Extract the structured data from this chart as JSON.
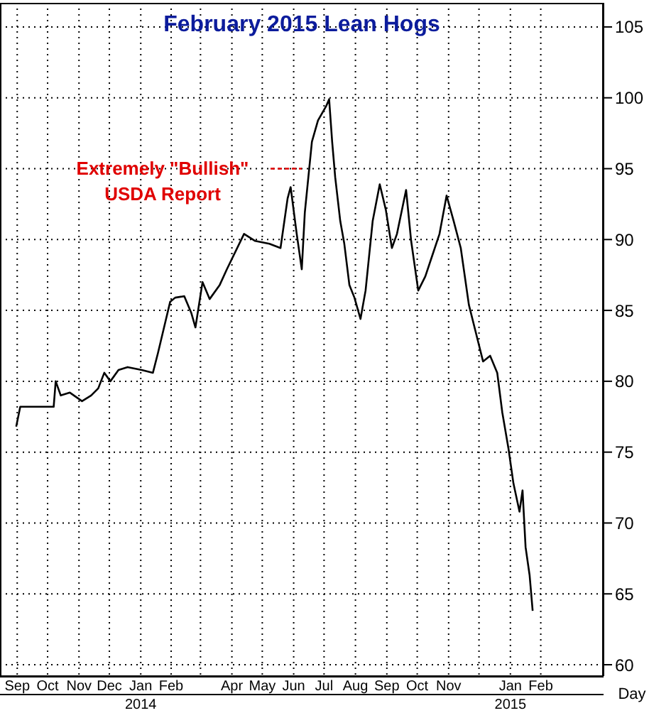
{
  "chart_data": {
    "type": "line",
    "title": "February 2015 Lean Hogs",
    "annotations": [
      {
        "text": "Extremely \"Bullish\"\nUSDA Report",
        "x": "2014-06-24",
        "y": 95
      },
      "Day"
    ],
    "x": [
      "2013-09-15",
      "2013-09-19",
      "2013-10-22",
      "2013-10-24",
      "2013-10-29",
      "2013-11-07",
      "2013-11-19",
      "2013-11-28",
      "2013-12-05",
      "2013-12-11",
      "2013-12-17",
      "2013-12-25",
      "2014-01-03",
      "2014-01-17",
      "2014-01-28",
      "2014-02-02",
      "2014-02-08",
      "2014-02-14",
      "2014-02-19",
      "2014-02-28",
      "2014-03-07",
      "2014-03-11",
      "2014-03-18",
      "2014-03-25",
      "2014-04-04",
      "2014-04-11",
      "2014-04-28",
      "2014-05-09",
      "2014-05-23",
      "2014-06-03",
      "2014-06-10",
      "2014-06-13",
      "2014-06-19",
      "2014-06-24",
      "2014-06-27",
      "2014-07-04",
      "2014-07-10",
      "2014-07-18",
      "2014-07-21",
      "2014-07-24",
      "2014-07-27",
      "2014-08-01",
      "2014-08-05",
      "2014-08-10",
      "2014-08-15",
      "2014-08-21",
      "2014-08-26",
      "2014-09-02",
      "2014-09-09",
      "2014-09-15",
      "2014-09-21",
      "2014-09-26",
      "2014-10-05",
      "2014-10-10",
      "2014-10-17",
      "2014-10-24",
      "2014-10-31",
      "2014-11-07",
      "2014-11-14",
      "2014-11-21",
      "2014-11-28",
      "2014-12-06",
      "2014-12-13",
      "2014-12-20",
      "2014-12-27",
      "2015-01-03",
      "2015-01-08",
      "2015-01-14",
      "2015-01-19",
      "2015-01-25",
      "2015-01-28",
      "2015-01-31",
      "2015-02-04",
      "2015-02-07"
    ],
    "series": [
      {
        "color": "#000000",
        "values": [
          76.8,
          78.2,
          78.2,
          80.0,
          79.0,
          79.2,
          78.6,
          79.0,
          79.5,
          80.6,
          80.0,
          80.8,
          81.0,
          80.8,
          80.6,
          82.0,
          83.8,
          85.6,
          85.9,
          86.0,
          84.8,
          83.8,
          87.0,
          85.8,
          86.8,
          87.9,
          90.4,
          89.9,
          89.7,
          89.4,
          92.9,
          93.7,
          90.4,
          87.9,
          91.9,
          96.9,
          98.4,
          99.4,
          99.9,
          96.9,
          94.4,
          91.3,
          89.7,
          86.8,
          85.9,
          84.4,
          86.4,
          91.3,
          93.9,
          92.1,
          89.4,
          90.4,
          93.5,
          89.9,
          86.4,
          87.4,
          88.9,
          90.4,
          93.1,
          91.3,
          89.4,
          85.4,
          83.4,
          81.4,
          81.8,
          80.6,
          77.8,
          75.3,
          72.8,
          70.8,
          72.3,
          68.3,
          66.3,
          63.8
        ]
      }
    ],
    "xlim": [
      "2013-08-30",
      "2015-04-18"
    ],
    "xticks": [
      {
        "value": "2013-09-16",
        "label": "Sep"
      },
      {
        "value": "2013-10-16",
        "label": "Oct"
      },
      {
        "value": "2013-11-16",
        "label": "Nov"
      },
      {
        "value": "2013-12-16",
        "label": "Dec"
      },
      {
        "value": "2014-01-16",
        "label": "Jan\n2014"
      },
      {
        "value": "2014-02-15",
        "label": "Feb"
      },
      {
        "value": "2014-03-16",
        "label": null
      },
      {
        "value": "2014-04-16",
        "label": "Apr"
      },
      {
        "value": "2014-05-16",
        "label": "May"
      },
      {
        "value": "2014-06-16",
        "label": "Jun"
      },
      {
        "value": "2014-07-16",
        "label": "Jul"
      },
      {
        "value": "2014-08-16",
        "label": "Aug"
      },
      {
        "value": "2014-09-16",
        "label": "Sep"
      },
      {
        "value": "2014-10-16",
        "label": "Oct"
      },
      {
        "value": "2014-11-16",
        "label": "Nov"
      },
      {
        "value": "2014-12-16",
        "label": null
      },
      {
        "value": "2015-01-16",
        "label": "Jan\n2015"
      },
      {
        "value": "2015-02-15",
        "label": "Feb"
      }
    ],
    "ylim": [
      59.2,
      106.7
    ],
    "yticks": [
      60,
      65,
      70,
      75,
      80,
      85,
      90,
      95,
      100,
      105
    ],
    "grid": true,
    "marker": "none",
    "line_style": "solid"
  }
}
